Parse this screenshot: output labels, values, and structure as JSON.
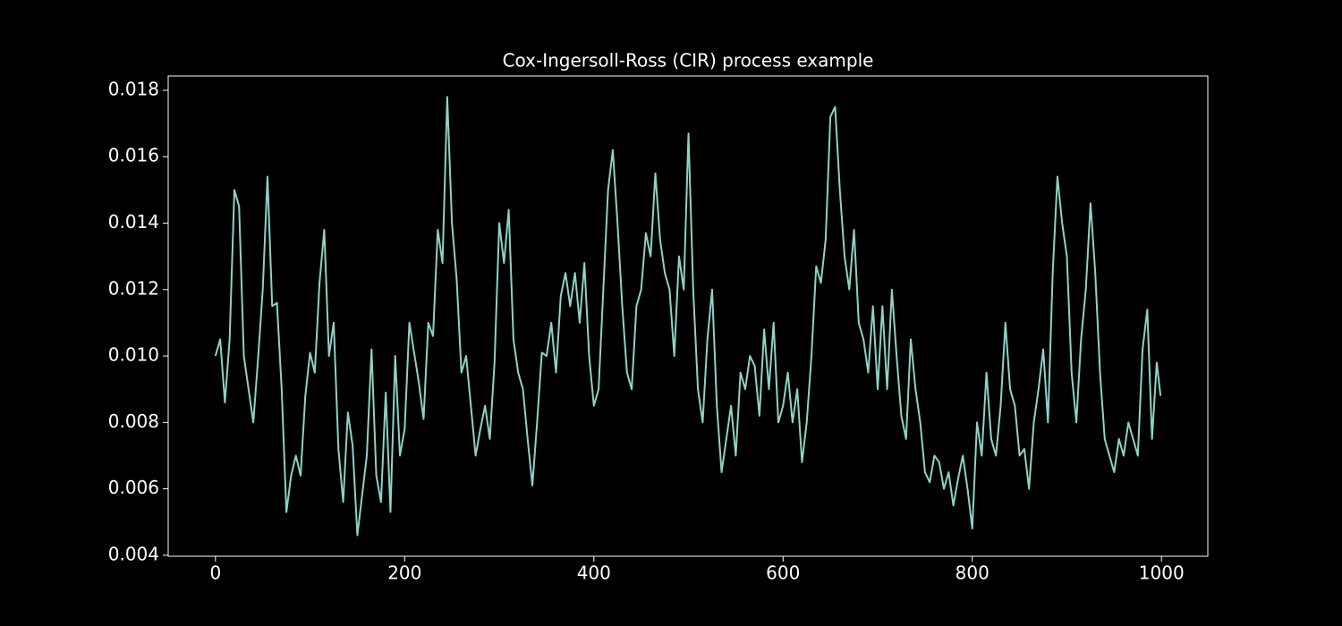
{
  "chart_data": {
    "type": "line",
    "title": "Cox-Ingersoll-Ross (CIR) process example",
    "x": [
      0,
      5,
      10,
      15,
      20,
      25,
      30,
      35,
      40,
      45,
      50,
      55,
      60,
      65,
      70,
      75,
      80,
      85,
      90,
      95,
      100,
      105,
      110,
      115,
      120,
      125,
      130,
      135,
      140,
      145,
      150,
      155,
      160,
      165,
      170,
      175,
      180,
      185,
      190,
      195,
      200,
      205,
      210,
      215,
      220,
      225,
      230,
      235,
      240,
      245,
      250,
      255,
      260,
      265,
      270,
      275,
      280,
      285,
      290,
      295,
      300,
      305,
      310,
      315,
      320,
      325,
      330,
      335,
      340,
      345,
      350,
      355,
      360,
      365,
      370,
      375,
      380,
      385,
      390,
      395,
      400,
      405,
      410,
      415,
      420,
      425,
      430,
      435,
      440,
      445,
      450,
      455,
      460,
      465,
      470,
      475,
      480,
      485,
      490,
      495,
      500,
      505,
      510,
      515,
      520,
      525,
      530,
      535,
      540,
      545,
      550,
      555,
      560,
      565,
      570,
      575,
      580,
      585,
      590,
      595,
      600,
      605,
      610,
      615,
      620,
      625,
      630,
      635,
      640,
      645,
      650,
      655,
      660,
      665,
      670,
      675,
      680,
      685,
      690,
      695,
      700,
      705,
      710,
      715,
      720,
      725,
      730,
      735,
      740,
      745,
      750,
      755,
      760,
      765,
      770,
      775,
      780,
      785,
      790,
      795,
      800,
      805,
      810,
      815,
      820,
      825,
      830,
      835,
      840,
      845,
      850,
      855,
      860,
      865,
      870,
      875,
      880,
      885,
      890,
      895,
      900,
      905,
      910,
      915,
      920,
      925,
      930,
      935,
      940,
      945,
      950,
      955,
      960,
      965,
      970,
      975,
      980,
      985,
      990,
      995,
      999
    ],
    "series": [
      {
        "color": "#8dd3c7",
        "values": [
          0.01,
          0.0105,
          0.0086,
          0.0105,
          0.015,
          0.0145,
          0.01,
          0.009,
          0.008,
          0.0099,
          0.012,
          0.0154,
          0.0115,
          0.0116,
          0.009,
          0.0053,
          0.0064,
          0.007,
          0.0064,
          0.0088,
          0.0101,
          0.0095,
          0.0122,
          0.0138,
          0.01,
          0.011,
          0.0072,
          0.0056,
          0.0083,
          0.0073,
          0.0046,
          0.0058,
          0.007,
          0.0102,
          0.0064,
          0.0056,
          0.0089,
          0.0053,
          0.01,
          0.007,
          0.0078,
          0.011,
          0.0101,
          0.0092,
          0.0081,
          0.011,
          0.0106,
          0.0138,
          0.0128,
          0.0178,
          0.014,
          0.0123,
          0.0095,
          0.01,
          0.0085,
          0.007,
          0.0078,
          0.0085,
          0.0075,
          0.0098,
          0.014,
          0.0128,
          0.0144,
          0.0105,
          0.0095,
          0.009,
          0.0075,
          0.0061,
          0.008,
          0.0101,
          0.01,
          0.011,
          0.0095,
          0.0118,
          0.0125,
          0.0115,
          0.0125,
          0.011,
          0.0128,
          0.01,
          0.0085,
          0.009,
          0.012,
          0.015,
          0.0162,
          0.014,
          0.0115,
          0.0095,
          0.009,
          0.0115,
          0.012,
          0.0137,
          0.013,
          0.0155,
          0.0135,
          0.0125,
          0.012,
          0.01,
          0.013,
          0.012,
          0.0167,
          0.012,
          0.009,
          0.008,
          0.0105,
          0.012,
          0.0085,
          0.0065,
          0.0075,
          0.0085,
          0.007,
          0.0095,
          0.009,
          0.01,
          0.0097,
          0.0082,
          0.0108,
          0.009,
          0.011,
          0.008,
          0.0085,
          0.0095,
          0.008,
          0.009,
          0.0068,
          0.008,
          0.01,
          0.0127,
          0.0122,
          0.0135,
          0.0172,
          0.0175,
          0.015,
          0.013,
          0.012,
          0.0138,
          0.011,
          0.0105,
          0.0095,
          0.0115,
          0.009,
          0.0115,
          0.009,
          0.012,
          0.01,
          0.0082,
          0.0075,
          0.0105,
          0.009,
          0.008,
          0.0065,
          0.0062,
          0.007,
          0.0068,
          0.006,
          0.0065,
          0.0055,
          0.0063,
          0.007,
          0.006,
          0.0048,
          0.008,
          0.007,
          0.0095,
          0.0075,
          0.007,
          0.0085,
          0.011,
          0.009,
          0.0085,
          0.007,
          0.0072,
          0.006,
          0.008,
          0.009,
          0.0102,
          0.008,
          0.0125,
          0.0154,
          0.014,
          0.013,
          0.0095,
          0.008,
          0.0105,
          0.012,
          0.0146,
          0.0125,
          0.0095,
          0.0075,
          0.007,
          0.0065,
          0.0075,
          0.007,
          0.008,
          0.0075,
          0.007,
          0.0102,
          0.0114,
          0.0075,
          0.0098,
          0.0088
        ]
      }
    ],
    "xlim": [
      -49.95,
      1048.95
    ],
    "xticks": [
      0,
      200,
      400,
      600,
      800,
      1000
    ],
    "ylim": [
      0.00397,
      0.01843
    ],
    "yticks": [
      0.004,
      0.006,
      0.008,
      {
        "value": 0.01,
        "label": "0.010"
      },
      0.012,
      0.014,
      0.016,
      0.018
    ],
    "grid": false
  }
}
